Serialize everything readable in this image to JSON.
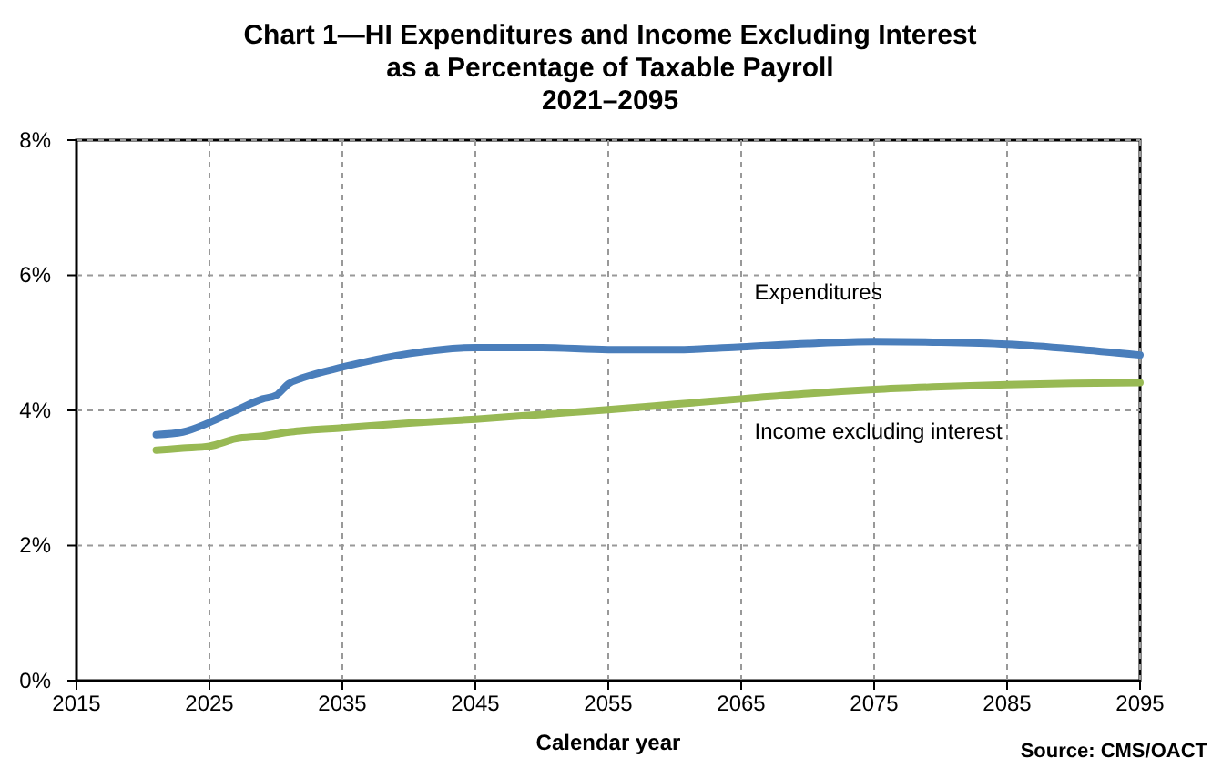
{
  "chart_data": {
    "type": "line",
    "title": "Chart 1—HI Expenditures and Income Excluding Interest\nas a Percentage of Taxable Payroll\n2021–2095",
    "xlabel": "Calendar year",
    "annotations": [
      "Source: CMS/OACT"
    ],
    "x": [
      2021,
      2023,
      2025,
      2027,
      2029,
      2030,
      2031,
      2032,
      2035,
      2040,
      2045,
      2050,
      2055,
      2060,
      2065,
      2070,
      2075,
      2080,
      2085,
      2090,
      2095
    ],
    "series": [
      {
        "name": "Expenditures",
        "color": "#4a7ebb",
        "values": [
          3.64,
          3.68,
          3.82,
          4.0,
          4.17,
          4.22,
          4.4,
          4.48,
          4.64,
          4.84,
          4.93,
          4.93,
          4.9,
          4.9,
          4.94,
          4.99,
          5.02,
          5.01,
          4.98,
          4.91,
          4.82
        ]
      },
      {
        "name": "Income excluding interest",
        "color": "#98b954",
        "values": [
          3.41,
          3.44,
          3.47,
          3.58,
          3.62,
          3.65,
          3.68,
          3.7,
          3.74,
          3.81,
          3.87,
          3.94,
          4.01,
          4.09,
          4.17,
          4.25,
          4.31,
          4.35,
          4.38,
          4.4,
          4.41
        ]
      }
    ],
    "xlim": [
      2015,
      2095
    ],
    "xticks": [
      2015,
      2025,
      2035,
      2045,
      2055,
      2065,
      2075,
      2085,
      2095
    ],
    "ylim": [
      0,
      8
    ],
    "yticks": [
      {
        "value": 0,
        "label": "0%"
      },
      {
        "value": 2,
        "label": "2%"
      },
      {
        "value": 4,
        "label": "4%"
      },
      {
        "value": 6,
        "label": "6%"
      },
      {
        "value": 8,
        "label": "8%"
      }
    ],
    "grid": true,
    "marker": "none",
    "line_style": "solid"
  }
}
